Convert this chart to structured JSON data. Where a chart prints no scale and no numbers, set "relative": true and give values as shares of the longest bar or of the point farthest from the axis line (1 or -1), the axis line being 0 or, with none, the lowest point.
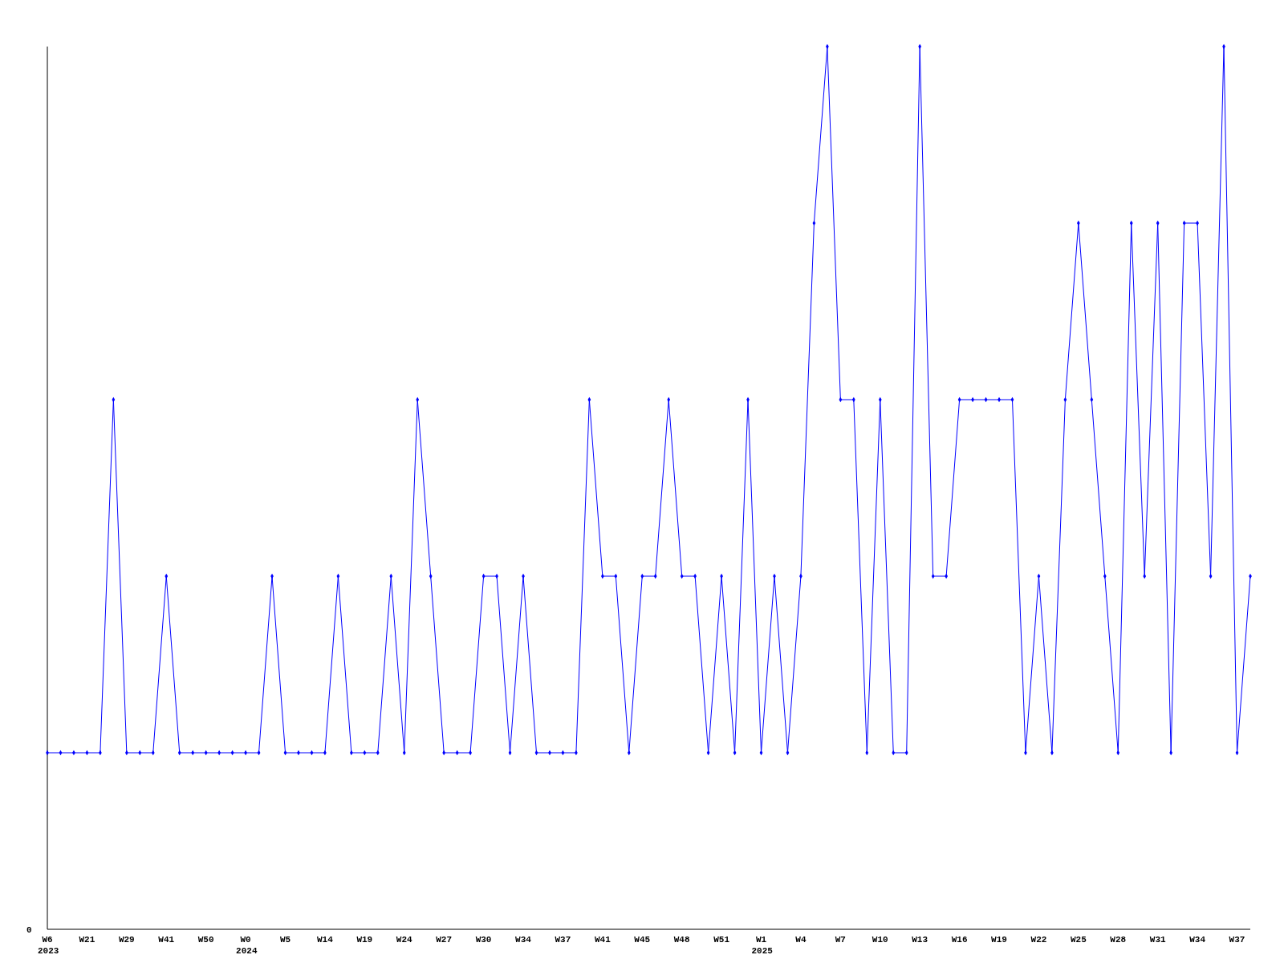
{
  "chart_data": {
    "type": "line",
    "relative": true,
    "marker": "diamond",
    "line_style": "solid",
    "categories": [
      "W6",
      null,
      null,
      "W21",
      null,
      null,
      "W29",
      null,
      null,
      "W41",
      null,
      null,
      "W50",
      null,
      null,
      "W0",
      null,
      null,
      "W5",
      null,
      null,
      "W14",
      null,
      null,
      "W19",
      null,
      null,
      "W24",
      null,
      null,
      "W27",
      null,
      null,
      "W30",
      null,
      null,
      "W34",
      null,
      null,
      "W37",
      null,
      null,
      "W41",
      null,
      null,
      "W45",
      null,
      null,
      "W48",
      null,
      null,
      "W51",
      null,
      null,
      "W1",
      null,
      null,
      "W4",
      null,
      null,
      "W7",
      null,
      null,
      "W10",
      null,
      null,
      "W13",
      null,
      null,
      "W16",
      null,
      null,
      "W19",
      null,
      null,
      "W22",
      null,
      null,
      "W25",
      null,
      null,
      "W28",
      null,
      null,
      "W31",
      null,
      null,
      "W34",
      null,
      null,
      "W37",
      null
    ],
    "series": [
      {
        "color": "#0000ff",
        "values": [
          0.2,
          0.2,
          0.2,
          0.2,
          0.2,
          0.6,
          0.2,
          0.2,
          0.2,
          0.4,
          0.2,
          0.2,
          0.2,
          0.2,
          0.2,
          0.2,
          0.2,
          0.4,
          0.2,
          0.2,
          0.2,
          0.2,
          0.4,
          0.2,
          0.2,
          0.2,
          0.4,
          0.2,
          0.6,
          0.4,
          0.2,
          0.2,
          0.2,
          0.4,
          0.4,
          0.2,
          0.4,
          0.2,
          0.2,
          0.2,
          0.2,
          0.6,
          0.4,
          0.4,
          0.2,
          0.4,
          0.4,
          0.6,
          0.4,
          0.4,
          0.2,
          0.4,
          0.2,
          0.6,
          0.2,
          0.4,
          0.2,
          0.4,
          0.8,
          1,
          0.6,
          0.6,
          0.2,
          0.6,
          0.2,
          0.2,
          1,
          0.4,
          0.4,
          0.6,
          0.6,
          0.6,
          0.6,
          0.6,
          0.2,
          0.4,
          0.2,
          0.6,
          0.8,
          0.6,
          0.4,
          0.2,
          0.8,
          0.4,
          0.8,
          0.2,
          0.8,
          0.8,
          0.4,
          1,
          0.2,
          0.4
        ]
      }
    ],
    "annotations": [
      "0",
      "2023",
      "2024",
      "2025"
    ]
  }
}
